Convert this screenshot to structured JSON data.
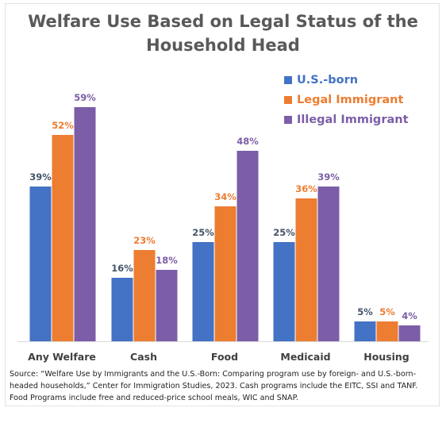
{
  "chart_data": {
    "type": "bar",
    "title_lines": [
      "Welfare Use Based on Legal Status of the",
      "Household Head"
    ],
    "categories": [
      "Any Welfare",
      "Cash",
      "Food",
      "Medicaid",
      "Housing"
    ],
    "series": [
      {
        "name": "U.S.-born",
        "values": [
          39,
          16,
          25,
          25,
          5
        ],
        "labels": [
          "39%",
          "16%",
          "25%",
          "25%",
          "5%"
        ],
        "color": "#4472c4",
        "label_color": "#44546a"
      },
      {
        "name": "Legal Immigrant",
        "values": [
          52,
          23,
          34,
          36,
          5
        ],
        "labels": [
          "52%",
          "23%",
          "34%",
          "36%",
          "5%"
        ],
        "color": "#ed7d31",
        "label_color": "#ed7d31"
      },
      {
        "name": "Illegal Immigrant",
        "values": [
          59,
          18,
          48,
          39,
          4
        ],
        "labels": [
          "59%",
          "18%",
          "48%",
          "39%",
          "4%"
        ],
        "color": "#7b5ea7",
        "label_color": "#7b5ea7"
      }
    ],
    "ylim": [
      0,
      70
    ],
    "grid": false,
    "legend_placement": "top-right",
    "legend_text_color": "#4472c4"
  },
  "source_note": "Source: “Welfare Use by Immigrants and the U.S.-Born: Comparing program use by foreign- and U.S.-born-headed households,” Center for Immigration Studies, 2023. Cash programs include the EITC, SSI and TANF.  Food Programs include free and reduced-price school meals, WIC and SNAP."
}
